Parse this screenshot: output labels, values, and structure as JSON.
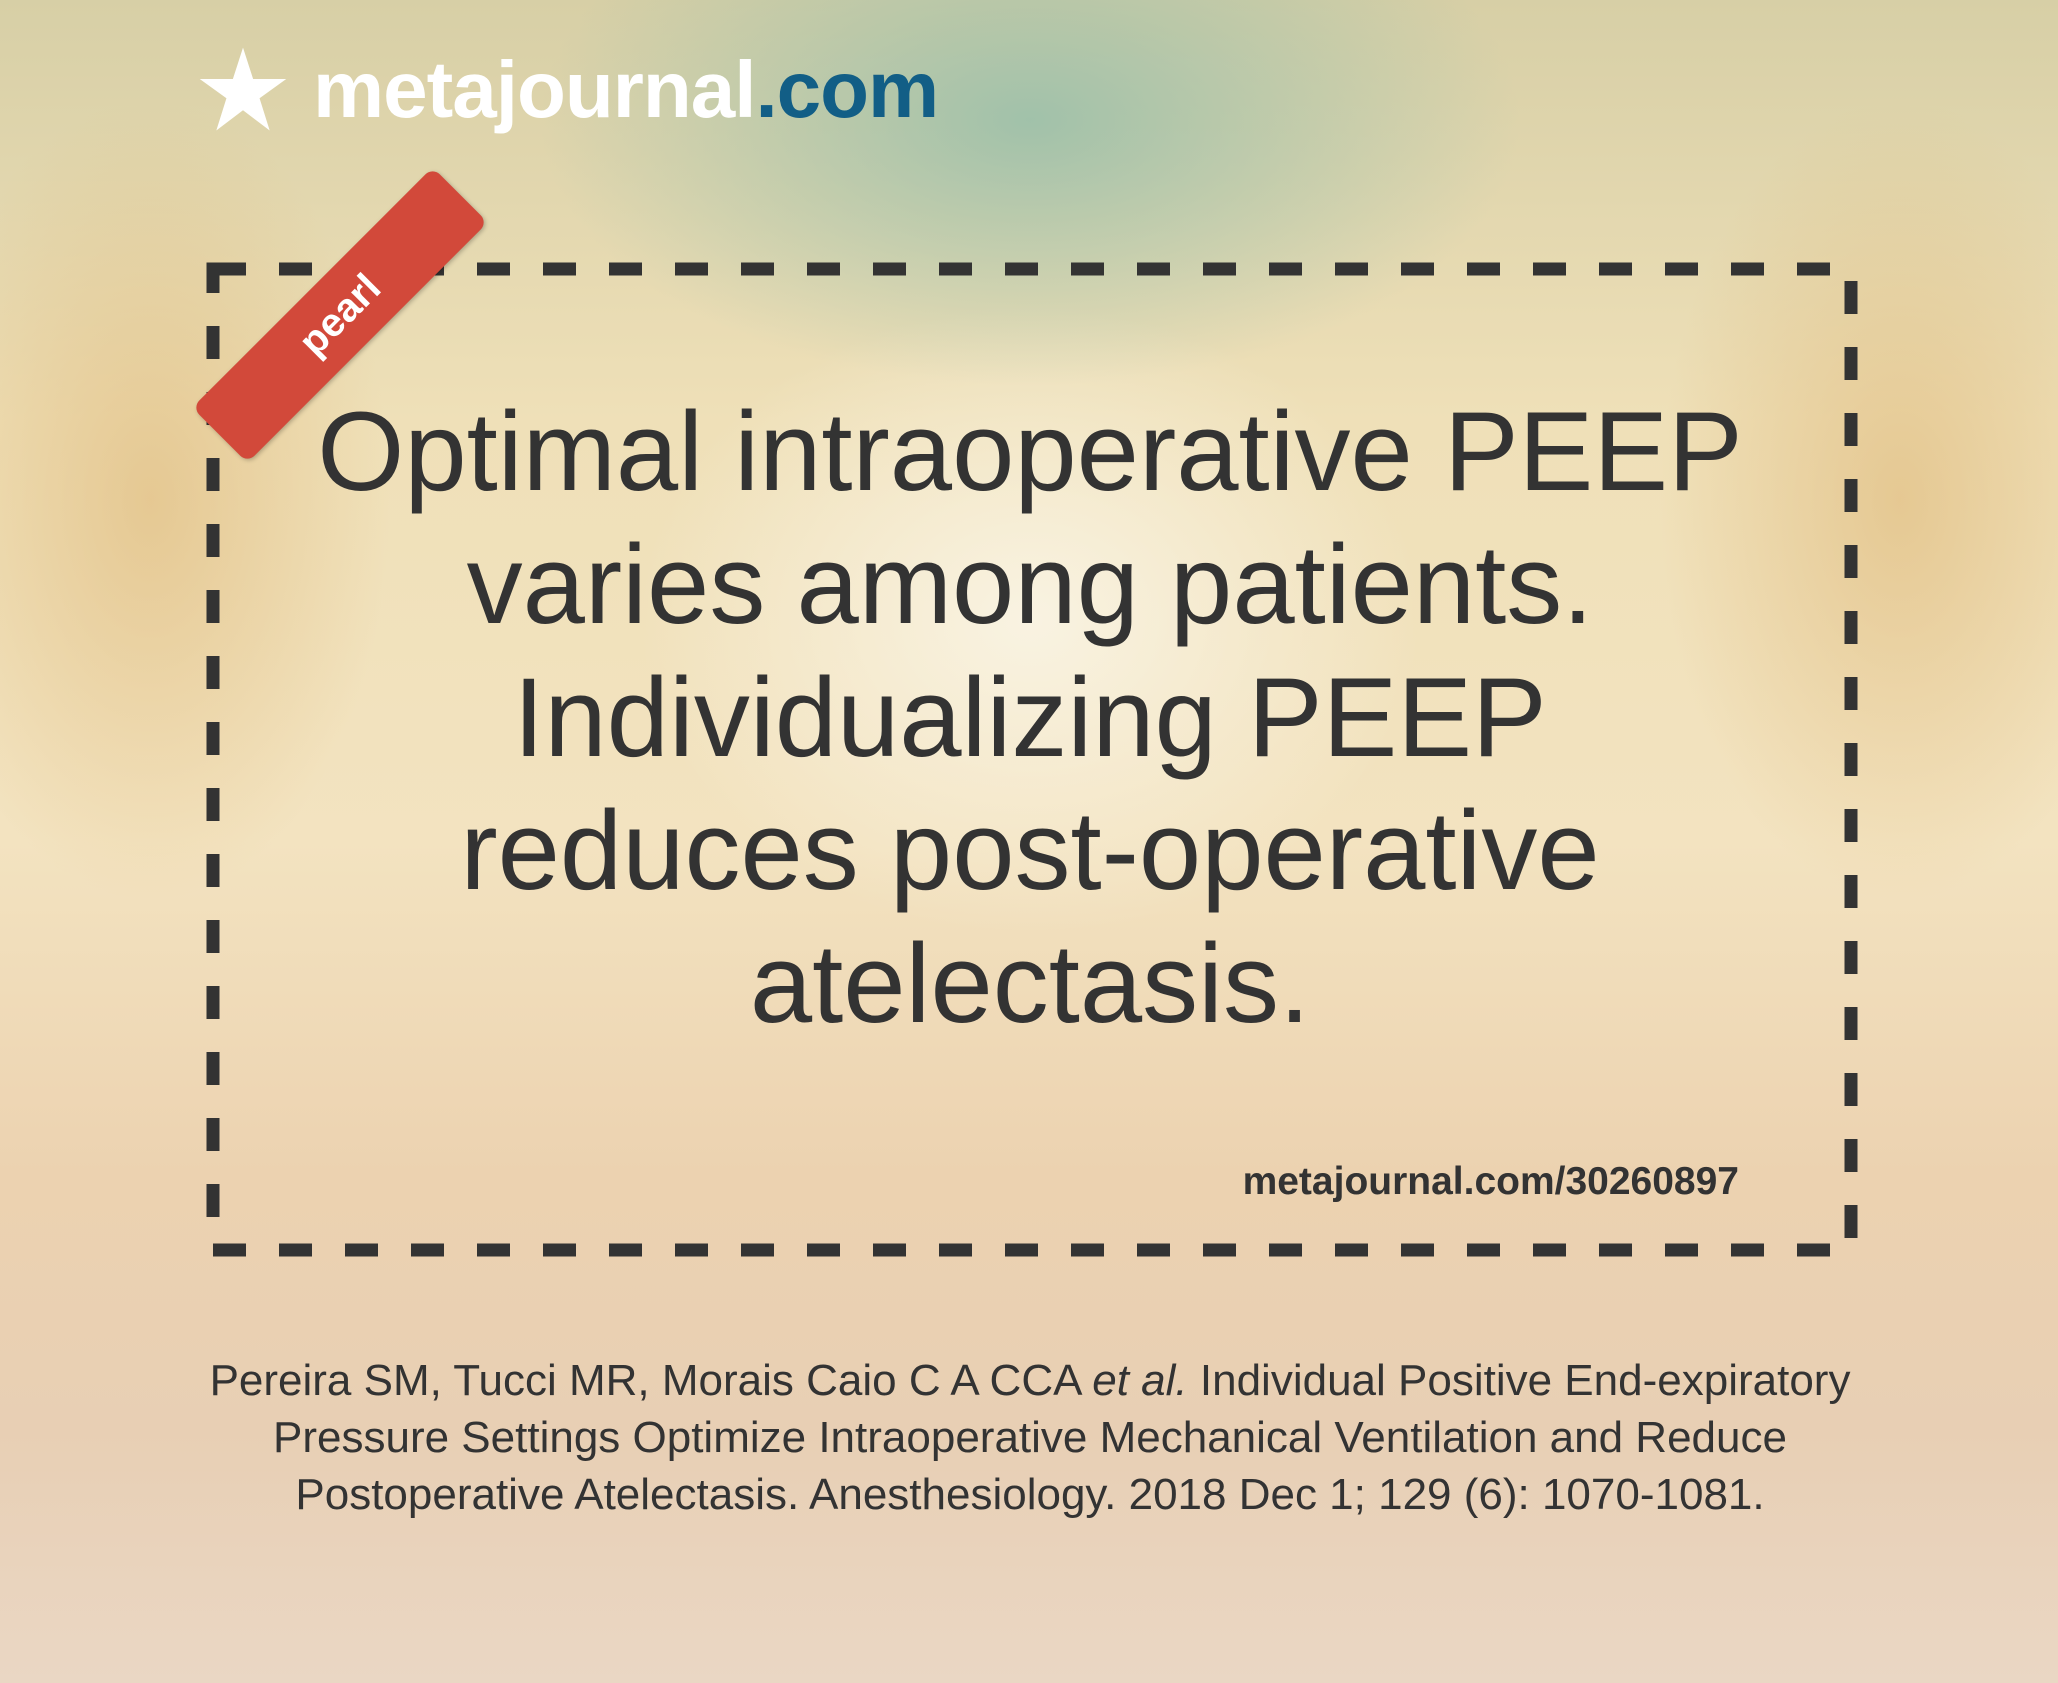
{
  "brand": {
    "name": "metajournal",
    "suffix": ".com"
  },
  "tag": "pearl",
  "pearl": {
    "lines": [
      "Optimal intraoperative PEEP",
      "varies among patients.",
      "Individualizing PEEP",
      "reduces post-operative",
      "atelectasis."
    ],
    "url": "metajournal.com/30260897"
  },
  "citation": {
    "authors": "Pereira SM, Tucci MR, Morais Caio C A CCA",
    "et_al": "et al.",
    "text": "Individual Positive End-expiratory Pressure Settings Optimize Intraoperative Mechanical Ventilation and Reduce Postoperative Atelectasis. Anesthesiology. 2018 Dec 1; 129 (6): 1070-1081."
  }
}
